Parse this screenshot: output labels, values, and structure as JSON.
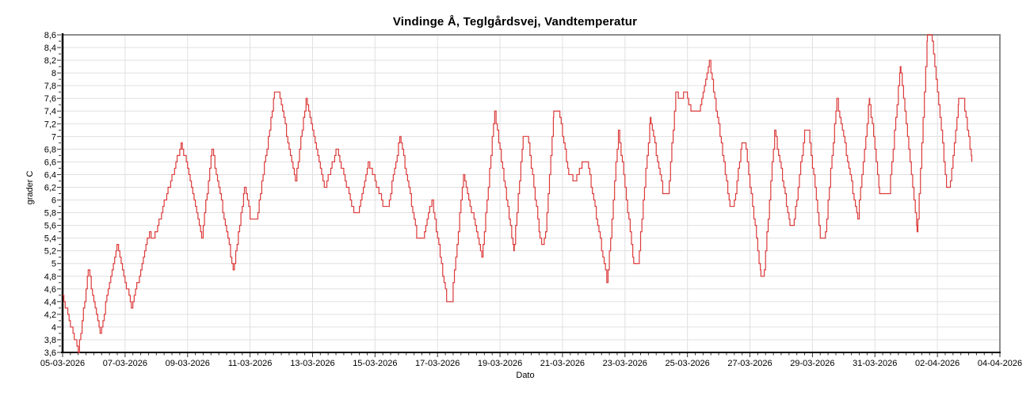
{
  "title": "Vindinge Å, Teglgårdsvej, Vandtemperatur",
  "colors": {
    "line": "#dc3a3a",
    "grid": "#e0e0e0",
    "axis": "#000000",
    "frame": "#8c8c8c",
    "tick": "#333333",
    "background": "#ffffff",
    "text": "#000000"
  },
  "chart_data": {
    "type": "line",
    "line_style": "step",
    "title": "Vindinge Å, Teglgårdsvej, Vandtemperatur",
    "xlabel": "Dato",
    "ylabel": "grader C",
    "x_unit": "days since 05-03-2026 00:00",
    "xlim_days": [
      0,
      30
    ],
    "x_tick_spacing_days": 2,
    "x_minor_tick_days": 0.25,
    "x_tick_labels": [
      "05-03-2026",
      "07-03-2026",
      "09-03-2026",
      "11-03-2026",
      "13-03-2026",
      "15-03-2026",
      "17-03-2026",
      "19-03-2026",
      "21-03-2026",
      "23-03-2026",
      "25-03-2026",
      "27-03-2026",
      "29-03-2026",
      "31-03-2026",
      "02-04-2026",
      "04-04-2026"
    ],
    "ylim": [
      3.6,
      8.6
    ],
    "y_major_step": 0.2,
    "y_minor_step": 0.1,
    "y_tick_labels": [
      "3,6",
      "3,8",
      "4",
      "4,2",
      "4,4",
      "4,6",
      "4,8",
      "5",
      "5,2",
      "5,4",
      "5,6",
      "5,8",
      "6",
      "6,2",
      "6,4",
      "6,6",
      "6,8",
      "7",
      "7,2",
      "7,4",
      "7,6",
      "7,8",
      "8",
      "8,2",
      "8,4",
      "8,6"
    ],
    "grid": true,
    "legend": false,
    "series": [
      {
        "name": "Vandtemperatur",
        "color": "#dc3a3a",
        "quantize_step": 0.1,
        "points": [
          [
            0,
            4.5
          ],
          [
            0.5,
            3.6
          ],
          [
            0.82,
            4.9
          ],
          [
            1.2,
            3.9
          ],
          [
            1.74,
            5.3
          ],
          [
            2.2,
            4.3
          ],
          [
            2.78,
            5.5
          ],
          [
            2.88,
            5.4
          ],
          [
            2.98,
            5.5
          ],
          [
            3.81,
            6.9
          ],
          [
            4.45,
            5.4
          ],
          [
            4.78,
            6.8
          ],
          [
            5.46,
            4.9
          ],
          [
            5.82,
            6.2
          ],
          [
            6.02,
            5.7
          ],
          [
            6.22,
            5.7
          ],
          [
            6.78,
            7.7
          ],
          [
            6.92,
            7.7
          ],
          [
            7.45,
            6.3
          ],
          [
            7.8,
            7.6
          ],
          [
            8.39,
            6.2
          ],
          [
            8.77,
            6.8
          ],
          [
            9.32,
            5.8
          ],
          [
            9.48,
            5.8
          ],
          [
            9.78,
            6.6
          ],
          [
            10.28,
            5.9
          ],
          [
            10.42,
            5.9
          ],
          [
            10.8,
            7
          ],
          [
            11.35,
            5.4
          ],
          [
            11.52,
            5.4
          ],
          [
            11.82,
            6
          ],
          [
            12.3,
            4.4
          ],
          [
            12.45,
            4.4
          ],
          [
            12.83,
            6.4
          ],
          [
            13.42,
            5.1
          ],
          [
            13.83,
            7.4
          ],
          [
            14.44,
            5.2
          ],
          [
            14.74,
            7
          ],
          [
            14.88,
            7
          ],
          [
            15.28,
            5.4
          ],
          [
            15.36,
            5.3
          ],
          [
            15.44,
            5.4
          ],
          [
            15.72,
            7.4
          ],
          [
            15.88,
            7.4
          ],
          [
            16.2,
            6.4
          ],
          [
            16.4,
            6.3
          ],
          [
            16.65,
            6.6
          ],
          [
            16.8,
            6.6
          ],
          [
            17.43,
            4.7
          ],
          [
            17.79,
            7.1
          ],
          [
            18.28,
            5
          ],
          [
            18.42,
            5
          ],
          [
            18.81,
            7.3
          ],
          [
            19.22,
            6.1
          ],
          [
            19.38,
            6.1
          ],
          [
            19.63,
            7.7
          ],
          [
            19.75,
            7.6
          ],
          [
            19.96,
            7.7
          ],
          [
            20.11,
            7.4
          ],
          [
            20.36,
            7.4
          ],
          [
            20.7,
            8.2
          ],
          [
            21.36,
            5.9
          ],
          [
            21.48,
            5.9
          ],
          [
            21.74,
            6.9
          ],
          [
            21.84,
            6.9
          ],
          [
            22.35,
            4.8
          ],
          [
            22.44,
            4.8
          ],
          [
            22.79,
            7.1
          ],
          [
            23.28,
            5.6
          ],
          [
            23.4,
            5.6
          ],
          [
            23.75,
            7.1
          ],
          [
            23.87,
            7.1
          ],
          [
            24.26,
            5.4
          ],
          [
            24.4,
            5.4
          ],
          [
            24.78,
            7.6
          ],
          [
            25.45,
            5.7
          ],
          [
            25.82,
            7.6
          ],
          [
            26.15,
            6.1
          ],
          [
            26.45,
            6.1
          ],
          [
            26.81,
            8.1
          ],
          [
            27.35,
            5.5
          ],
          [
            27.68,
            8.6
          ],
          [
            27.81,
            8.6
          ],
          [
            28.3,
            6.2
          ],
          [
            28.4,
            6.2
          ],
          [
            28.68,
            7.6
          ],
          [
            28.82,
            7.6
          ],
          [
            29.1,
            6.6
          ]
        ]
      }
    ]
  }
}
